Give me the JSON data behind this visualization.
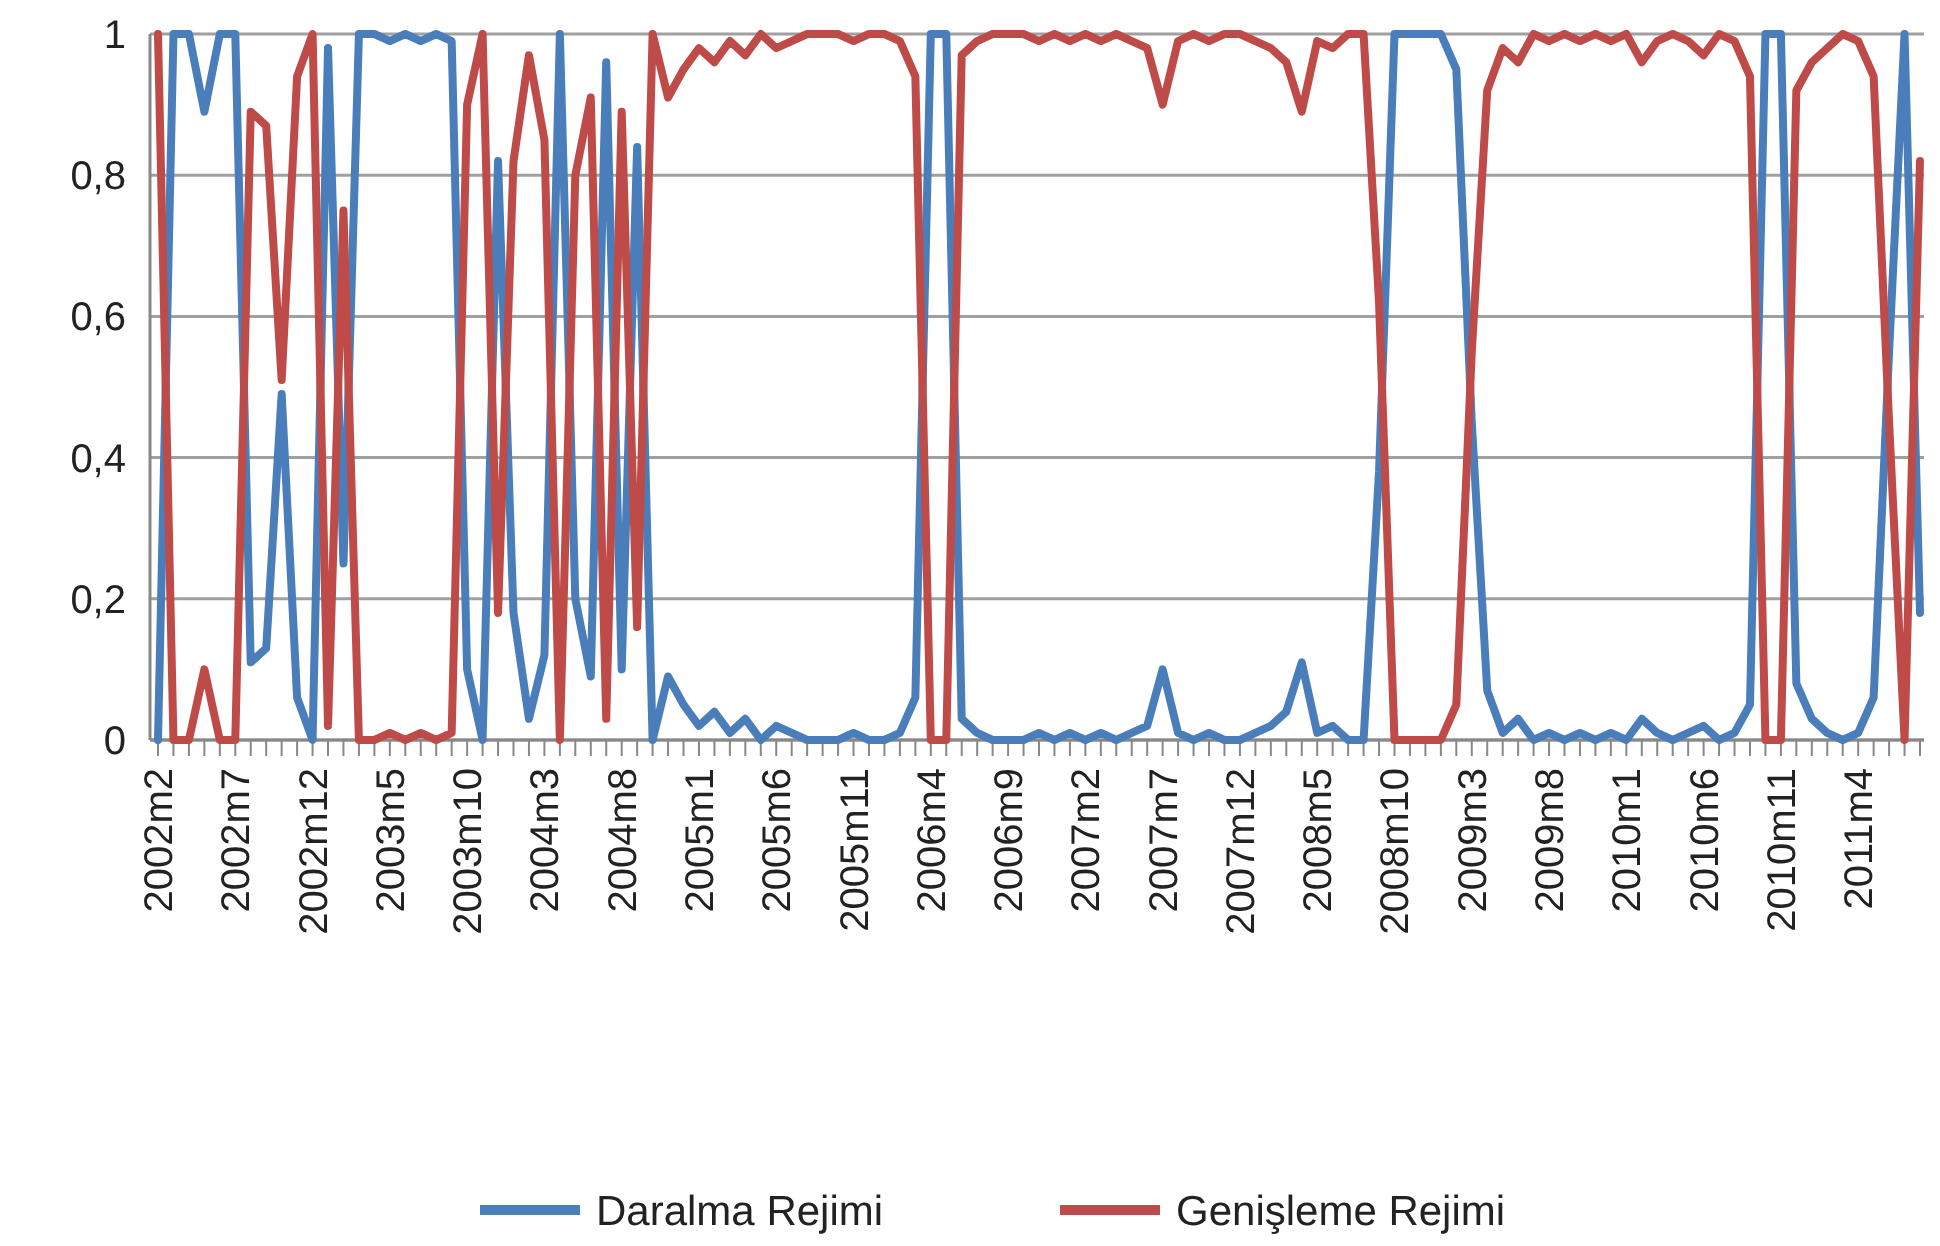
{
  "chart_data": {
    "type": "line",
    "categories": [
      "2002m2",
      null,
      null,
      null,
      null,
      "2002m7",
      null,
      null,
      null,
      null,
      "2002m12",
      null,
      null,
      null,
      null,
      "2003m5",
      null,
      null,
      null,
      null,
      "2003m10",
      null,
      null,
      null,
      null,
      "2004m3",
      null,
      null,
      null,
      null,
      "2004m8",
      null,
      null,
      null,
      null,
      "2005m1",
      null,
      null,
      null,
      null,
      "2005m6",
      null,
      null,
      null,
      null,
      "2005m11",
      null,
      null,
      null,
      null,
      "2006m4",
      null,
      null,
      null,
      null,
      "2006m9",
      null,
      null,
      null,
      null,
      "2007m2",
      null,
      null,
      null,
      null,
      "2007m7",
      null,
      null,
      null,
      null,
      "2007m12",
      null,
      null,
      null,
      null,
      "2008m5",
      null,
      null,
      null,
      null,
      "2008m10",
      null,
      null,
      null,
      null,
      "2009m3",
      null,
      null,
      null,
      null,
      "2009m8",
      null,
      null,
      null,
      null,
      "2010m1",
      null,
      null,
      null,
      null,
      "2010m6",
      null,
      null,
      null,
      null,
      "2010m11",
      null,
      null,
      null,
      null,
      "2011m4",
      null,
      null,
      null,
      null
    ],
    "series": [
      {
        "name": "Daralma Rejimi",
        "color": "#4a7ebb",
        "values": [
          0,
          1,
          1,
          0.89,
          1,
          1,
          0.11,
          0.13,
          0.49,
          0.06,
          0,
          0.98,
          0.25,
          1,
          1,
          0.99,
          1,
          0.99,
          1,
          0.99,
          0.1,
          0,
          0.82,
          0.18,
          0.03,
          0.12,
          1,
          0.2,
          0.09,
          0.96,
          0.1,
          0.84,
          0,
          0.09,
          0.05,
          0.02,
          0.04,
          0.01,
          0.03,
          0,
          0.02,
          0.01,
          0,
          0,
          0,
          0.01,
          0,
          0,
          0.01,
          0.06,
          1,
          1,
          0.03,
          0.01,
          0,
          0,
          0,
          0.01,
          0,
          0.01,
          0,
          0.01,
          0,
          0.01,
          0.02,
          0.1,
          0.01,
          0,
          0.01,
          0,
          0,
          0.01,
          0.02,
          0.04,
          0.11,
          0.01,
          0.02,
          0,
          0,
          0.38,
          1,
          1,
          1,
          1,
          0.95,
          0.45,
          0.07,
          0.01,
          0.03,
          0,
          0.01,
          0,
          0.01,
          0,
          0.01,
          0,
          0.03,
          0.01,
          0,
          0.01,
          0.02,
          0,
          0.01,
          0.05,
          1,
          1,
          0.08,
          0.03,
          0.01,
          0,
          0.01,
          0.06,
          0.55,
          1,
          0.18
        ]
      },
      {
        "name": "Genişleme Rejimi",
        "color": "#be4b48",
        "values": [
          1,
          0,
          0,
          0.1,
          0,
          0,
          0.89,
          0.87,
          0.51,
          0.94,
          1,
          0.02,
          0.75,
          0,
          0,
          0.01,
          0,
          0.01,
          0,
          0.01,
          0.9,
          1,
          0.18,
          0.82,
          0.97,
          0.85,
          0,
          0.8,
          0.91,
          0.03,
          0.89,
          0.16,
          1,
          0.91,
          0.95,
          0.98,
          0.96,
          0.99,
          0.97,
          1,
          0.98,
          0.99,
          1,
          1,
          1,
          0.99,
          1,
          1,
          0.99,
          0.94,
          0,
          0,
          0.97,
          0.99,
          1,
          1,
          1,
          0.99,
          1,
          0.99,
          1,
          0.99,
          1,
          0.99,
          0.98,
          0.9,
          0.99,
          1,
          0.99,
          1,
          1,
          0.99,
          0.98,
          0.96,
          0.89,
          0.99,
          0.98,
          1,
          1,
          0.62,
          0,
          0,
          0,
          0,
          0.05,
          0.55,
          0.92,
          0.98,
          0.96,
          1,
          0.99,
          1,
          0.99,
          1,
          0.99,
          1,
          0.96,
          0.99,
          1,
          0.99,
          0.97,
          1,
          0.99,
          0.94,
          0,
          0,
          0.92,
          0.96,
          0.98,
          1,
          0.99,
          0.94,
          0.45,
          0,
          0.82
        ]
      }
    ],
    "ylim": [
      0,
      1
    ],
    "yticks": [
      0,
      {
        "value": 0.2,
        "label": "0,2"
      },
      {
        "value": 0.4,
        "label": "0,4"
      },
      {
        "value": 0.6,
        "label": "0,6"
      },
      {
        "value": 0.8,
        "label": "0,8"
      },
      1
    ],
    "grid": "y",
    "legend": "bottom",
    "marker": "none",
    "line_style": "solid"
  }
}
